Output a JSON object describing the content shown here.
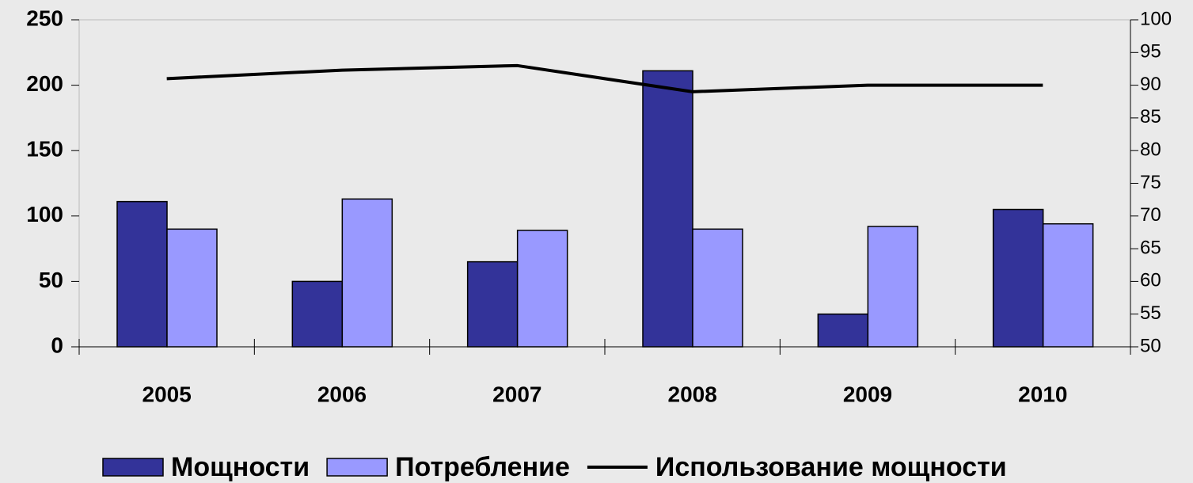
{
  "chart_data": {
    "type": "bar+line",
    "categories": [
      "2005",
      "2006",
      "2007",
      "2008",
      "2009",
      "2010"
    ],
    "series": [
      {
        "name": "Мощности",
        "type": "bar",
        "color": "#333399",
        "values": [
          111,
          50,
          65,
          211,
          25,
          105
        ]
      },
      {
        "name": "Потребление",
        "type": "bar",
        "color": "#9999ff",
        "values": [
          90,
          113,
          89,
          90,
          92,
          94
        ]
      },
      {
        "name": "Использование мощности",
        "type": "line",
        "axis": "y2",
        "color": "#000000",
        "values": [
          91,
          92.3,
          93,
          89,
          90,
          90
        ]
      }
    ],
    "ylim": [
      0,
      250
    ],
    "yticks": [
      0,
      50,
      100,
      150,
      200,
      250
    ],
    "y2lim": [
      50,
      100
    ],
    "y2ticks": [
      50,
      55,
      60,
      65,
      70,
      75,
      80,
      85,
      90,
      95,
      100
    ],
    "legend": "bottom"
  }
}
